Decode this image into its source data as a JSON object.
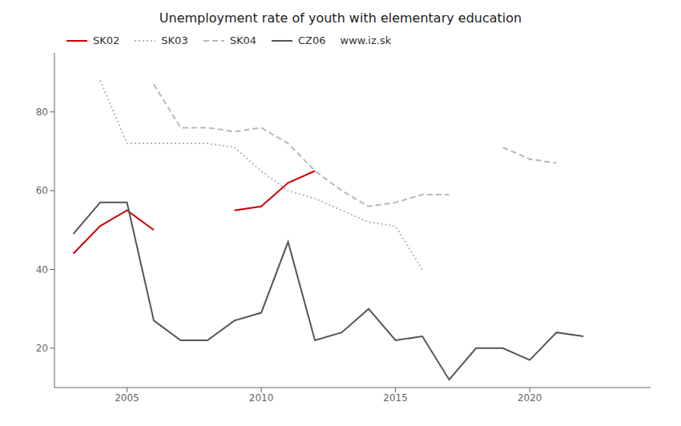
{
  "chart_data": {
    "type": "line",
    "title": "Unemployment rate of youth with elementary education",
    "x": [
      2003,
      2004,
      2005,
      2006,
      2007,
      2008,
      2009,
      2010,
      2011,
      2012,
      2013,
      2014,
      2015,
      2016,
      2017,
      2018,
      2019,
      2020,
      2021,
      2022,
      2023
    ],
    "series": [
      {
        "name": "SK02",
        "color": "#cc0000",
        "line_style": "solid",
        "values": [
          44,
          51,
          55,
          50,
          null,
          null,
          55,
          56,
          62,
          65,
          null,
          null,
          null,
          null,
          null,
          null,
          null,
          null,
          null,
          null,
          null
        ]
      },
      {
        "name": "SK03",
        "color": "#b8b8b8",
        "line_style": "dotted",
        "values": [
          null,
          88,
          72,
          72,
          72,
          72,
          71,
          65,
          60,
          58,
          55,
          52,
          51,
          40,
          null,
          null,
          null,
          null,
          null,
          null,
          null
        ]
      },
      {
        "name": "SK04",
        "color": "#b8b8b8",
        "line_style": "dashed",
        "values": [
          null,
          null,
          null,
          87,
          76,
          76,
          75,
          76,
          72,
          65,
          60,
          56,
          57,
          59,
          59,
          null,
          71,
          68,
          67,
          null,
          null
        ]
      },
      {
        "name": "CZ06",
        "color": "#555555",
        "line_style": "solid",
        "values": [
          49,
          57,
          57,
          27,
          22,
          22,
          27,
          29,
          47,
          22,
          24,
          30,
          22,
          23,
          12,
          20,
          20,
          17,
          24,
          23,
          null
        ]
      }
    ],
    "xlim": [
      2002.3,
      2024.5
    ],
    "xticks": [
      2005,
      2010,
      2015,
      2020
    ],
    "ylim": [
      10,
      95
    ],
    "yticks": [
      20,
      40,
      60,
      80
    ],
    "grid": false,
    "legend": "upper left",
    "annotations": [
      "www.iz.sk"
    ]
  }
}
